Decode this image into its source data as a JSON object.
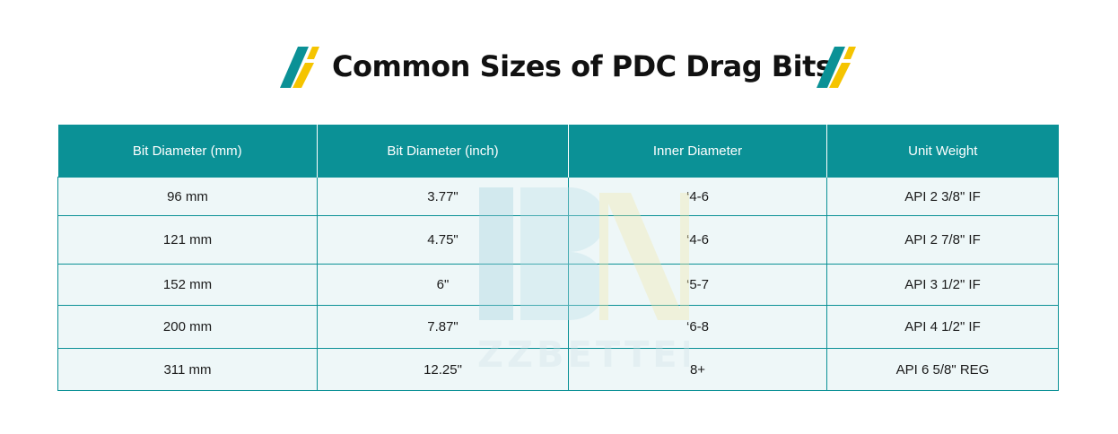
{
  "title": "Common Sizes of PDC Drag Bits",
  "colors": {
    "header_bg": "#0b9196",
    "row_bg": "#eef7f8",
    "accent_teal": "#0b9196",
    "accent_yellow": "#f5c400",
    "title_color": "#111111"
  },
  "watermark": {
    "text": "ZZBETTER"
  },
  "table": {
    "headers": [
      "Bit Diameter (mm)",
      "Bit Diameter (inch)",
      "Inner Diameter",
      "Unit Weight"
    ],
    "rows": [
      [
        "96 mm",
        "3.77\"",
        "‘4-6",
        "API 2 3/8\" IF"
      ],
      [
        "121 mm",
        "4.75\"",
        "‘4-6",
        "API 2 7/8\" IF"
      ],
      [
        "152 mm",
        "6\"",
        "‘5-7",
        "API 3 1/2\" IF"
      ],
      [
        "200 mm",
        "7.87\"",
        "‘6-8",
        "API 4 1/2\" IF"
      ],
      [
        "311 mm",
        "12.25\"",
        "8+",
        "API 6 5/8\" REG"
      ]
    ]
  }
}
